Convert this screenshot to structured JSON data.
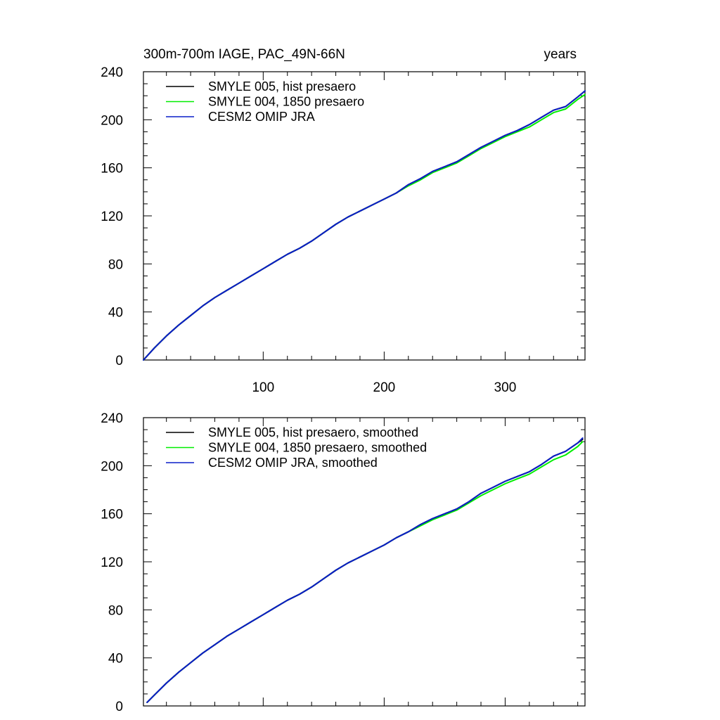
{
  "chart_data": [
    {
      "type": "line",
      "title_left": "300m-700m IAGE, PAC_49N-66N",
      "title_right": "years",
      "xlim": [
        1,
        366
      ],
      "ylim": [
        0,
        240
      ],
      "x_tick_labels": [
        {
          "value": 100,
          "label": "100"
        },
        {
          "value": 200,
          "label": "200"
        },
        {
          "value": 300,
          "label": "300"
        }
      ],
      "y_tick_labels": [
        {
          "value": 0,
          "label": "0"
        },
        {
          "value": 40,
          "label": "40"
        },
        {
          "value": 80,
          "label": "80"
        },
        {
          "value": 120,
          "label": "120"
        },
        {
          "value": 160,
          "label": "160"
        },
        {
          "value": 200,
          "label": "200"
        },
        {
          "value": 240,
          "label": "240"
        }
      ],
      "grid": false,
      "legend_position": "top-left",
      "series": [
        {
          "name": "SMYLE 005, hist presaero",
          "color": "#000000",
          "x": [
            1,
            10,
            20,
            30,
            40,
            50,
            60,
            70,
            80,
            90,
            100,
            110,
            120,
            130,
            140,
            150,
            160,
            170,
            180,
            190,
            200,
            210,
            220,
            230,
            240,
            250,
            260,
            270,
            280,
            290,
            300,
            310,
            320,
            330,
            340,
            350,
            360,
            366
          ],
          "y": [
            0,
            10,
            20,
            29,
            37,
            45,
            52,
            58,
            64,
            70,
            76,
            82,
            88,
            93,
            99,
            106,
            113,
            119,
            124,
            129,
            134,
            139,
            146,
            151,
            157,
            161,
            165,
            171,
            177,
            182,
            187,
            191,
            196,
            202,
            208,
            211,
            219,
            224
          ]
        },
        {
          "name": "SMYLE 004, 1850 presaero",
          "color": "#00ee00",
          "x": [
            1,
            10,
            20,
            30,
            40,
            50,
            60,
            70,
            80,
            90,
            100,
            110,
            120,
            130,
            140,
            150,
            160,
            170,
            180,
            190,
            200,
            210,
            220,
            230,
            240,
            250,
            260,
            270,
            280,
            290,
            300,
            310,
            320,
            330,
            340,
            350,
            360,
            366
          ],
          "y": [
            0,
            10,
            20,
            29,
            37,
            45,
            52,
            58,
            64,
            70,
            76,
            82,
            88,
            93,
            99,
            106,
            113,
            119,
            124,
            129,
            134,
            139,
            145,
            150,
            156,
            160,
            164,
            170,
            176,
            181,
            186,
            190,
            194,
            200,
            206,
            209,
            217,
            221
          ]
        },
        {
          "name": "CESM2 OMIP JRA",
          "color": "#0a1ec8",
          "x": [
            1,
            10,
            20,
            30,
            40,
            50,
            60,
            70,
            80,
            90,
            100,
            110,
            120,
            130,
            140,
            150,
            160,
            170,
            180,
            190,
            200,
            210,
            220,
            230,
            240,
            250,
            260,
            270,
            280,
            290,
            300,
            310,
            320,
            330,
            340,
            350,
            360,
            366
          ],
          "y": [
            0,
            10,
            20,
            29,
            37,
            45,
            52,
            58,
            64,
            70,
            76,
            82,
            88,
            93,
            99,
            106,
            113,
            119,
            124,
            129,
            134,
            139,
            146,
            151,
            157,
            161,
            165,
            171,
            177,
            182,
            187,
            191,
            196,
            202,
            208,
            211,
            219,
            224
          ]
        }
      ]
    },
    {
      "type": "line",
      "xlim": [
        1,
        366
      ],
      "ylim": [
        0,
        240
      ],
      "y_tick_labels": [
        {
          "value": 0,
          "label": "0"
        },
        {
          "value": 40,
          "label": "40"
        },
        {
          "value": 80,
          "label": "80"
        },
        {
          "value": 120,
          "label": "120"
        },
        {
          "value": 160,
          "label": "160"
        },
        {
          "value": 200,
          "label": "200"
        },
        {
          "value": 240,
          "label": "240"
        }
      ],
      "grid": false,
      "legend_position": "top-left",
      "series": [
        {
          "name": "SMYLE 005, hist presaero, smoothed",
          "color": "#000000",
          "x": [
            4,
            10,
            20,
            30,
            40,
            50,
            60,
            70,
            80,
            90,
            100,
            110,
            120,
            130,
            140,
            150,
            160,
            170,
            180,
            190,
            200,
            210,
            220,
            230,
            240,
            250,
            260,
            270,
            280,
            290,
            300,
            310,
            320,
            330,
            340,
            350,
            360,
            364
          ],
          "y": [
            3,
            9,
            19,
            28,
            36,
            44,
            51,
            58,
            64,
            70,
            76,
            82,
            88,
            93,
            99,
            106,
            113,
            119,
            124,
            129,
            134,
            140,
            145,
            151,
            156,
            160,
            164,
            170,
            177,
            182,
            187,
            191,
            195,
            201,
            208,
            212,
            219,
            222
          ]
        },
        {
          "name": "SMYLE 004, 1850 presaero, smoothed",
          "color": "#00ee00",
          "x": [
            4,
            10,
            20,
            30,
            40,
            50,
            60,
            70,
            80,
            90,
            100,
            110,
            120,
            130,
            140,
            150,
            160,
            170,
            180,
            190,
            200,
            210,
            220,
            230,
            240,
            250,
            260,
            270,
            280,
            290,
            300,
            310,
            320,
            330,
            340,
            350,
            360,
            364
          ],
          "y": [
            3,
            9,
            19,
            28,
            36,
            44,
            51,
            58,
            64,
            70,
            76,
            82,
            88,
            93,
            99,
            106,
            113,
            119,
            124,
            129,
            134,
            140,
            145,
            150,
            155,
            159,
            163,
            169,
            175,
            180,
            185,
            189,
            193,
            199,
            205,
            209,
            216,
            220
          ]
        },
        {
          "name": "CESM2 OMIP JRA, smoothed",
          "color": "#0a1ec8",
          "x": [
            4,
            10,
            20,
            30,
            40,
            50,
            60,
            70,
            80,
            90,
            100,
            110,
            120,
            130,
            140,
            150,
            160,
            170,
            180,
            190,
            200,
            210,
            220,
            230,
            240,
            250,
            260,
            270,
            280,
            290,
            300,
            310,
            320,
            330,
            340,
            350,
            360,
            364
          ],
          "y": [
            3,
            9,
            19,
            28,
            36,
            44,
            51,
            58,
            64,
            70,
            76,
            82,
            88,
            93,
            99,
            106,
            113,
            119,
            124,
            129,
            134,
            140,
            145,
            151,
            156,
            160,
            164,
            170,
            177,
            182,
            187,
            191,
            195,
            201,
            208,
            212,
            219,
            223
          ]
        }
      ]
    }
  ]
}
